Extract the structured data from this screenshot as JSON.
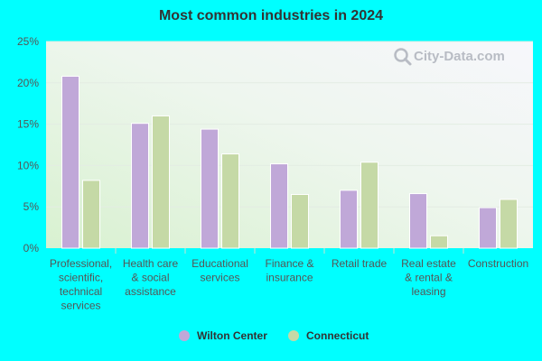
{
  "chart_data": {
    "type": "bar",
    "title": "Most common industries in 2024",
    "categories": [
      [
        "Professional,",
        "scientific,",
        "technical",
        "services"
      ],
      [
        "Health care",
        "& social",
        "assistance"
      ],
      [
        "Educational",
        "services"
      ],
      [
        "Finance &",
        "insurance"
      ],
      [
        "Retail trade"
      ],
      [
        "Real estate",
        "& rental &",
        "leasing"
      ],
      [
        "Construction"
      ]
    ],
    "series": [
      {
        "name": "Wilton Center",
        "color": "#c0a8d8",
        "values": [
          20.8,
          15.1,
          14.4,
          10.2,
          7.0,
          6.6,
          4.9
        ]
      },
      {
        "name": "Connecticut",
        "color": "#c5d9a6",
        "values": [
          8.2,
          16.0,
          11.4,
          6.5,
          10.4,
          1.5,
          5.9
        ]
      }
    ],
    "yticks": [
      "0%",
      "5%",
      "10%",
      "15%",
      "20%",
      "25%"
    ],
    "ylim": [
      0,
      25
    ],
    "legend_position": "bottom",
    "grid": true
  },
  "watermark": "City-Data.com"
}
